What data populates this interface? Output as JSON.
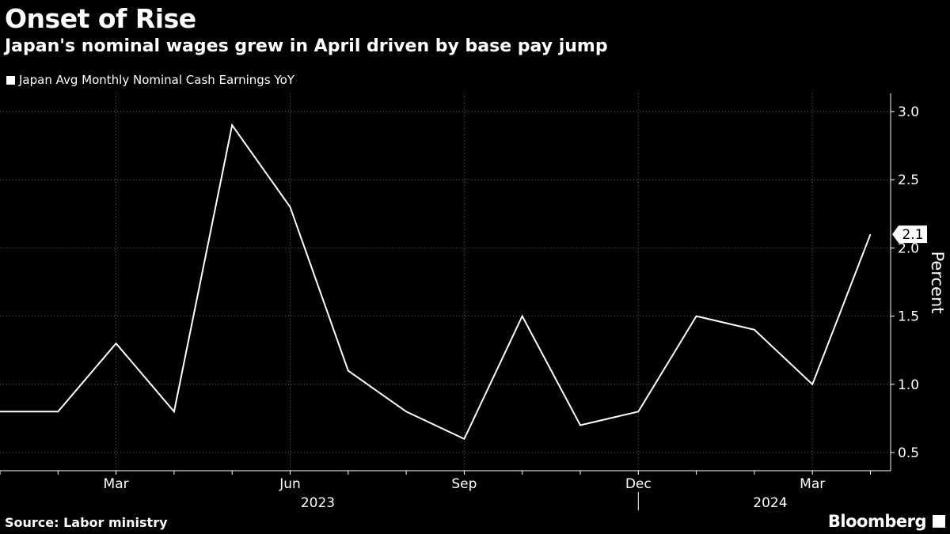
{
  "header": {
    "title": "Onset of Rise",
    "subtitle": "Japan's nominal wages grew in April driven by base pay jump"
  },
  "footer": {
    "source": "Source: Labor ministry",
    "brand": "Bloomberg"
  },
  "chart_data": {
    "type": "line",
    "title": "Onset of Rise",
    "subtitle": "Japan's nominal wages grew in April driven by base pay jump",
    "ylabel": "Percent",
    "xlabel": "",
    "ylim": [
      0.5,
      3.0
    ],
    "yticks": [
      0.5,
      1.0,
      1.5,
      2.0,
      2.5,
      3.0
    ],
    "ytick_labels": [
      "0.5",
      "1.0",
      "1.5",
      "2.0",
      "2.5",
      "3.0"
    ],
    "grid": true,
    "legend_position": "top-left",
    "x": [
      "2023-01",
      "2023-02",
      "2023-03",
      "2023-04",
      "2023-05",
      "2023-06",
      "2023-07",
      "2023-08",
      "2023-09",
      "2023-10",
      "2023-11",
      "2023-12",
      "2024-01",
      "2024-02",
      "2024-03",
      "2024-04"
    ],
    "xtick_labels": [
      {
        "x": "2023-03",
        "label": "Mar"
      },
      {
        "x": "2023-06",
        "label": "Jun"
      },
      {
        "x": "2023-09",
        "label": "Sep"
      },
      {
        "x": "2023-12",
        "label": "Dec"
      },
      {
        "x": "2024-03",
        "label": "Mar"
      }
    ],
    "year_labels": [
      {
        "label": "2023"
      },
      {
        "label": "2024"
      }
    ],
    "series": [
      {
        "name": "Japan Avg Monthly Nominal Cash Earnings YoY",
        "color": "#ffffff",
        "values": [
          0.8,
          0.8,
          1.3,
          0.8,
          2.9,
          2.3,
          1.1,
          0.8,
          0.6,
          1.5,
          0.7,
          0.8,
          1.5,
          1.4,
          1.0,
          2.1
        ]
      }
    ],
    "last_value_label": "2.1"
  }
}
